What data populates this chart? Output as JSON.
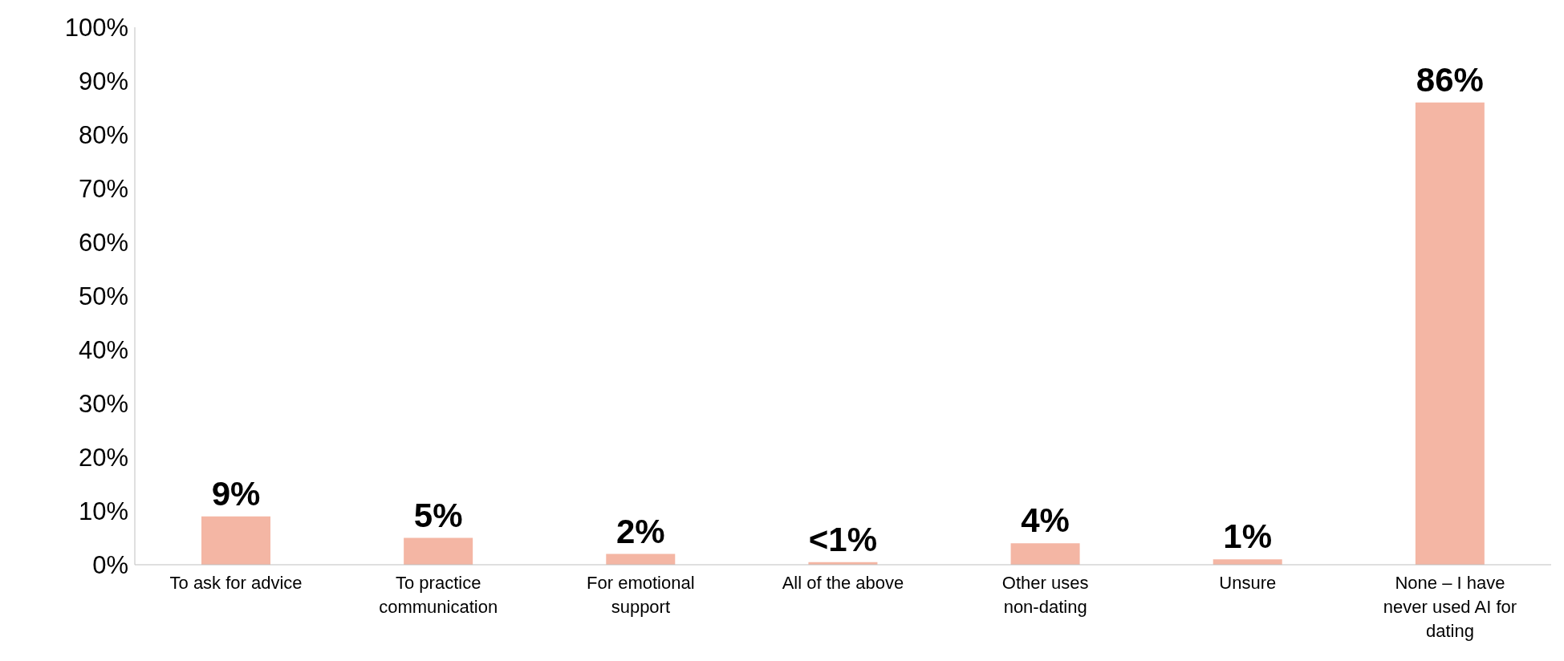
{
  "chart_data": {
    "type": "bar",
    "categories": [
      "To ask for advice",
      "To practice communication",
      "For emotional support",
      "All of the above",
      "Other uses non-dating",
      "Unsure",
      "None – I have never used AI for dating"
    ],
    "values": [
      9,
      5,
      2,
      0.5,
      4,
      1,
      86
    ],
    "value_labels": [
      "9%",
      "5%",
      "2%",
      "<1%",
      "4%",
      "1%",
      "86%"
    ],
    "color": "#f4b6a4",
    "ylim": [
      0,
      100
    ],
    "yticks": [
      {
        "value": 0,
        "label": "0%"
      },
      {
        "value": 10,
        "label": "10%"
      },
      {
        "value": 20,
        "label": "20%"
      },
      {
        "value": 30,
        "label": "30%"
      },
      {
        "value": 40,
        "label": "40%"
      },
      {
        "value": 50,
        "label": "50%"
      },
      {
        "value": 60,
        "label": "60%"
      },
      {
        "value": 70,
        "label": "70%"
      },
      {
        "value": 80,
        "label": "80%"
      },
      {
        "value": 90,
        "label": "90%"
      },
      {
        "value": 100,
        "label": "100%"
      }
    ],
    "grid": false,
    "legend": false
  }
}
